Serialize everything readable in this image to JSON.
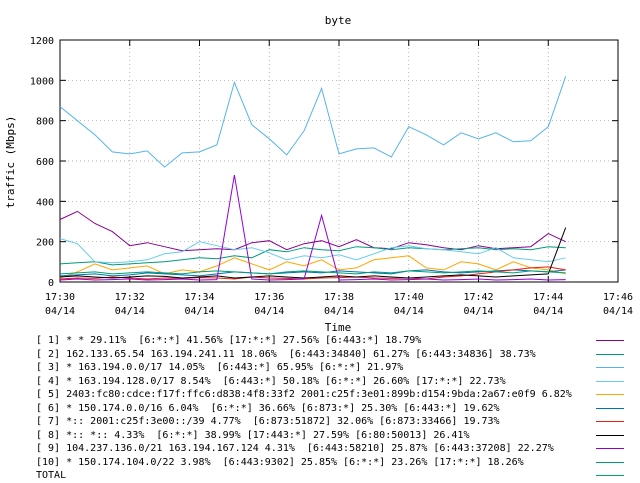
{
  "chart_data": {
    "type": "line",
    "title": "byte",
    "xlabel": "Time",
    "ylabel": "traffic (Mbps)",
    "ylim": [
      0,
      1200
    ],
    "yticks": [
      0,
      200,
      400,
      600,
      800,
      1000,
      1200
    ],
    "xlim_minutes": [
      0,
      16
    ],
    "xticks": [
      {
        "time": "17:30",
        "date": "04/14",
        "minute": 0
      },
      {
        "time": "17:32",
        "date": "04/14",
        "minute": 2
      },
      {
        "time": "17:34",
        "date": "04/14",
        "minute": 4
      },
      {
        "time": "17:36",
        "date": "04/14",
        "minute": 6
      },
      {
        "time": "17:38",
        "date": "04/14",
        "minute": 8
      },
      {
        "time": "17:40",
        "date": "04/14",
        "minute": 10
      },
      {
        "time": "17:42",
        "date": "04/14",
        "minute": 12
      },
      {
        "time": "17:44",
        "date": "04/14",
        "minute": 14
      },
      {
        "time": "17:46",
        "date": "04/14",
        "minute": 16
      }
    ],
    "grid": true,
    "legend_position": "bottom",
    "x": [
      0,
      0.5,
      1,
      1.5,
      2,
      2.5,
      3,
      3.5,
      4,
      4.5,
      5,
      5.5,
      6,
      6.5,
      7,
      7.5,
      8,
      8.5,
      9,
      9.5,
      10,
      10.5,
      11,
      11.5,
      12,
      12.5,
      13,
      13.5,
      14,
      14.5
    ],
    "series": [
      {
        "name": "[ 1] * * 29.11%  [6:*:*] 41.56% [17:*:*] 27.56% [6:443:*] 18.79%",
        "color": "#8b008b",
        "values": [
          310,
          350,
          290,
          250,
          180,
          195,
          175,
          155,
          160,
          165,
          160,
          195,
          205,
          160,
          190,
          205,
          175,
          210,
          170,
          165,
          195,
          185,
          170,
          160,
          180,
          165,
          170,
          175,
          240,
          200
        ]
      },
      {
        "name": "[ 2] 162.133.65.54 163.194.241.11 18.06%  [6:443:34840] 61.27% [6:443:34836] 38.73%",
        "color": "#009a7a",
        "values": [
          90,
          95,
          100,
          85,
          90,
          95,
          100,
          110,
          120,
          115,
          130,
          120,
          160,
          150,
          170,
          160,
          155,
          175,
          170,
          160,
          170,
          165,
          160,
          165,
          170,
          160,
          165,
          160,
          175,
          170
        ]
      },
      {
        "name": "[ 3] * 163.194.0.0/17 14.05%  [6:443:*] 65.95% [6:*:*] 21.97%",
        "color": "#56b4e9",
        "values": [
          870,
          800,
          730,
          645,
          635,
          650,
          570,
          640,
          645,
          680,
          990,
          780,
          710,
          630,
          750,
          960,
          635,
          660,
          665,
          620,
          770,
          730,
          680,
          740,
          710,
          740,
          695,
          700,
          770,
          1020
        ]
      },
      {
        "name": "[ 4] * 163.194.128.0/17 8.54%  [6:443:*] 50.18% [6:*:*] 26.60% [17:*:*] 22.73%",
        "color": "#66ccee",
        "values": [
          215,
          190,
          100,
          95,
          100,
          110,
          140,
          150,
          200,
          180,
          160,
          170,
          145,
          110,
          130,
          120,
          135,
          110,
          140,
          170,
          180,
          165,
          160,
          150,
          140,
          170,
          120,
          110,
          100,
          120
        ]
      },
      {
        "name": "[ 5] 2403:fc80:cdce:f17f:ffc6:d838:4f8:33f2 2001:c25f:3e01:899b:d154:9bda:2a67:e0f9 6.82%",
        "color": "#ffa500",
        "values": [
          20,
          50,
          90,
          60,
          70,
          80,
          40,
          60,
          50,
          80,
          120,
          90,
          60,
          100,
          80,
          110,
          60,
          70,
          110,
          120,
          130,
          70,
          60,
          100,
          90,
          60,
          100,
          70,
          60,
          40
        ]
      },
      {
        "name": "[ 6] * 150.174.0.0/16 6.04%  [6:*:*] 36.66% [6:873:*] 25.30% [6:443:*] 19.62%",
        "color": "#0072b2",
        "values": [
          30,
          35,
          40,
          30,
          35,
          45,
          40,
          35,
          30,
          40,
          50,
          45,
          40,
          45,
          50,
          45,
          55,
          50,
          45,
          40,
          55,
          60,
          50,
          45,
          50,
          55,
          60,
          55,
          50,
          60
        ]
      },
      {
        "name": "[ 7] *:: 2001:c25f:3e00::/39 4.77%  [6:873:51872] 32.06% [6:873:33466] 19.73%",
        "color": "#e51e10",
        "values": [
          15,
          20,
          18,
          25,
          20,
          15,
          20,
          18,
          22,
          20,
          15,
          25,
          20,
          18,
          15,
          20,
          22,
          25,
          20,
          18,
          20,
          15,
          25,
          30,
          40,
          50,
          60,
          70,
          75,
          60
        ]
      },
      {
        "name": "[ 8] *:: *:: 4.33%  [6:*:*] 38.99% [17:443:*] 27.59% [6:80:50013] 26.41%",
        "color": "#000000",
        "values": [
          25,
          30,
          25,
          20,
          25,
          30,
          28,
          20,
          25,
          30,
          20,
          25,
          30,
          25,
          20,
          25,
          30,
          25,
          30,
          25,
          20,
          25,
          30,
          35,
          30,
          25,
          30,
          35,
          40,
          270
        ]
      },
      {
        "name": "[ 9] 104.237.136.0/21 163.194.167.124 4.31%  [6:443:58210] 25.87% [6:443:37208] 22.27%",
        "color": "#9400d3",
        "values": [
          10,
          15,
          10,
          12,
          15,
          10,
          12,
          15,
          10,
          12,
          530,
          15,
          10,
          12,
          15,
          330,
          10,
          12,
          15,
          10,
          12,
          15,
          10,
          12,
          15,
          10,
          12,
          15,
          10,
          12
        ]
      },
      {
        "name": "[10] * 150.174.104.0/22 3.98%  [6:443:9302] 25.85% [6:*:*] 23.26% [17:*:*] 18.26%",
        "color": "#009e73",
        "values": [
          40,
          45,
          50,
          40,
          45,
          50,
          45,
          40,
          50,
          55,
          50,
          45,
          40,
          50,
          55,
          50,
          45,
          40,
          50,
          45,
          55,
          50,
          45,
          50,
          55,
          50,
          45,
          55,
          50,
          45
        ]
      }
    ],
    "total_label": "TOTAL",
    "total_color": "#00aa66"
  }
}
